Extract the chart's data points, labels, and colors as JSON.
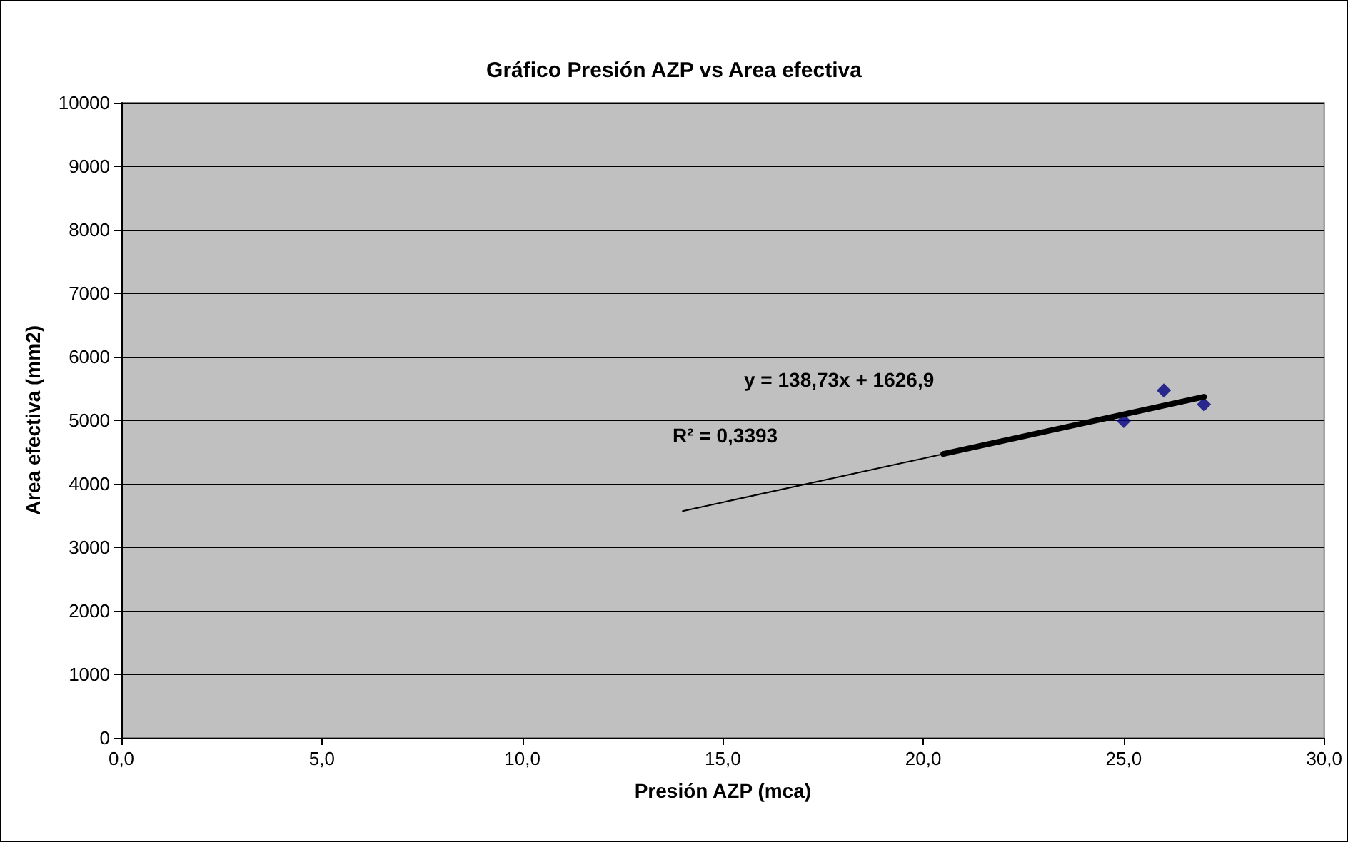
{
  "chart_data": {
    "type": "scatter",
    "title": "Gráfico Presión AZP vs Area efectiva",
    "xlabel": "Presión AZP (mca)",
    "ylabel": "Area efectiva (mm2)",
    "xlim": [
      0,
      30
    ],
    "xticks": [
      {
        "value": 0,
        "label": "0,0"
      },
      {
        "value": 5,
        "label": "5,0"
      },
      {
        "value": 10,
        "label": "10,0"
      },
      {
        "value": 15,
        "label": "15,0"
      },
      {
        "value": 20,
        "label": "20,0"
      },
      {
        "value": 25,
        "label": "25,0"
      },
      {
        "value": 30,
        "label": "30,0"
      }
    ],
    "ylim": [
      0,
      10000
    ],
    "yticks": [
      0,
      1000,
      2000,
      3000,
      4000,
      5000,
      6000,
      7000,
      8000,
      9000,
      10000
    ],
    "grid": "y",
    "series": [
      {
        "color": "#000080",
        "marker": "diamond",
        "x": [
          25,
          26,
          27
        ],
        "values": [
          4990,
          5470,
          5250
        ]
      },
      {
        "type": "line",
        "marker": "none",
        "color": "#000000",
        "x": [
          14,
          27
        ],
        "values": [
          3570,
          5370
        ]
      },
      {
        "type": "line",
        "marker": "none",
        "color": "#000000",
        "x": [
          20.5,
          27
        ],
        "values": [
          4470,
          5370
        ]
      }
    ],
    "annotations": [
      "y = 138,73x + 1626,9",
      "R² = 0,3393"
    ]
  }
}
